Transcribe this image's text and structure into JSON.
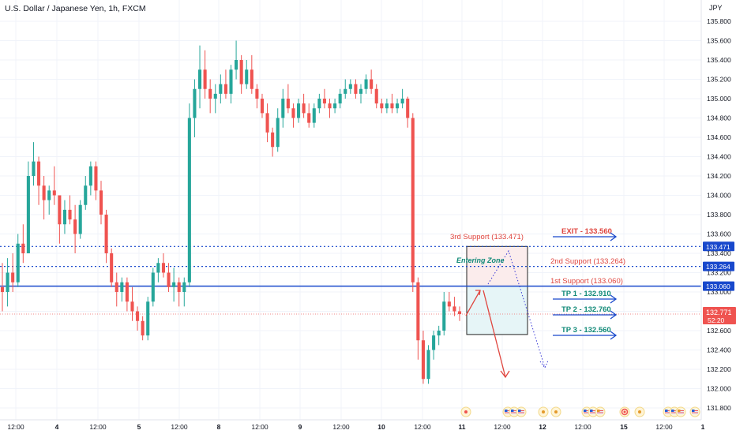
{
  "header": {
    "symbol_title": "U.S. Dollar / Japanese Yen, 1h, FXCM",
    "currency": "JPY"
  },
  "chart_data": {
    "type": "candlestick",
    "title": "U.S. Dollar / Japanese Yen, 1h, FXCM",
    "y_axis": {
      "unit": "JPY",
      "range": [
        131.75,
        135.9
      ],
      "ticks": [
        "131.800",
        "132.000",
        "132.200",
        "132.400",
        "132.600",
        "132.800",
        "133.000",
        "133.200",
        "133.400",
        "133.600",
        "133.800",
        "134.000",
        "134.200",
        "134.400",
        "134.600",
        "134.800",
        "135.000",
        "135.200",
        "135.400",
        "135.600",
        "135.800"
      ]
    },
    "x_axis": {
      "ticks": [
        "12:00",
        "4",
        "12:00",
        "5",
        "12:00",
        "8",
        "12:00",
        "9",
        "12:00",
        "10",
        "12:00",
        "11",
        "12:00",
        "12",
        "12:00",
        "15",
        "12:00",
        "1"
      ]
    },
    "price_lines": [
      {
        "name": "3rd Support",
        "value": 133.471,
        "label": "133.471",
        "style": "dotted"
      },
      {
        "name": "2nd Support",
        "value": 133.264,
        "label": "133.264",
        "style": "dotted"
      },
      {
        "name": "1st Support",
        "value": 133.06,
        "label": "133.060",
        "style": "solid"
      },
      {
        "name": "Last price",
        "value": 132.771,
        "label": "132.771",
        "countdown": "52:20",
        "style": "dotted"
      }
    ],
    "annotations": {
      "third_support": "3rd Support (133.471)",
      "second_support": "2nd Support (133.264)",
      "first_support": "1st Support (133.060)",
      "entering_zone": "Entering Zone",
      "exit": "EXIT - 133.560",
      "tp1": "TP 1 - 132.910",
      "tp2": "TP 2 - 132.760",
      "tp3": "TP 3 - 132.560"
    },
    "zone": {
      "top": 133.471,
      "bottom": 132.56,
      "split": 133.06
    },
    "ohlc": [
      [
        133.05,
        133.3,
        132.8,
        133.0
      ],
      [
        133.0,
        133.35,
        132.85,
        133.2
      ],
      [
        133.2,
        133.4,
        133.0,
        133.1
      ],
      [
        133.1,
        133.6,
        133.05,
        133.5
      ],
      [
        133.5,
        133.7,
        133.3,
        133.4
      ],
      [
        133.4,
        134.35,
        133.4,
        134.2
      ],
      [
        134.2,
        134.55,
        134.1,
        134.35
      ],
      [
        134.35,
        134.4,
        133.9,
        134.1
      ],
      [
        134.1,
        134.2,
        133.75,
        133.95
      ],
      [
        133.95,
        134.1,
        133.8,
        134.05
      ],
      [
        134.05,
        134.3,
        133.9,
        134.0
      ],
      [
        134.0,
        134.0,
        133.5,
        133.7
      ],
      [
        133.7,
        133.95,
        133.6,
        133.85
      ],
      [
        133.85,
        134.0,
        133.7,
        133.75
      ],
      [
        133.75,
        133.9,
        133.4,
        133.6
      ],
      [
        133.6,
        133.95,
        133.55,
        133.9
      ],
      [
        133.9,
        134.2,
        133.85,
        134.1
      ],
      [
        134.1,
        134.35,
        134.0,
        134.3
      ],
      [
        134.3,
        134.35,
        133.95,
        134.05
      ],
      [
        134.05,
        134.15,
        133.7,
        133.8
      ],
      [
        133.8,
        133.85,
        133.3,
        133.4
      ],
      [
        133.4,
        133.45,
        133.05,
        133.1
      ],
      [
        133.1,
        133.2,
        132.85,
        133.0
      ],
      [
        133.0,
        133.15,
        132.9,
        133.1
      ],
      [
        133.1,
        133.15,
        132.8,
        132.9
      ],
      [
        132.9,
        133.05,
        132.7,
        132.8
      ],
      [
        132.8,
        132.85,
        132.6,
        132.7
      ],
      [
        132.7,
        132.75,
        132.5,
        132.55
      ],
      [
        132.55,
        132.95,
        132.5,
        132.9
      ],
      [
        132.9,
        133.25,
        132.85,
        133.2
      ],
      [
        133.2,
        133.35,
        133.1,
        133.3
      ],
      [
        133.3,
        133.4,
        133.15,
        133.2
      ],
      [
        133.2,
        133.3,
        133.0,
        133.05
      ],
      [
        133.05,
        133.25,
        132.9,
        133.1
      ],
      [
        133.1,
        133.15,
        132.85,
        133.0
      ],
      [
        133.0,
        133.15,
        132.85,
        133.1
      ],
      [
        133.1,
        134.95,
        133.05,
        134.8
      ],
      [
        134.8,
        135.2,
        134.6,
        135.1
      ],
      [
        135.1,
        135.55,
        134.9,
        135.3
      ],
      [
        135.3,
        135.5,
        135.0,
        135.1
      ],
      [
        135.1,
        135.2,
        134.85,
        135.0
      ],
      [
        135.0,
        135.15,
        134.85,
        135.05
      ],
      [
        135.05,
        135.25,
        134.95,
        135.15
      ],
      [
        135.15,
        135.3,
        135.0,
        135.05
      ],
      [
        135.05,
        135.35,
        134.95,
        135.3
      ],
      [
        135.3,
        135.6,
        135.2,
        135.4
      ],
      [
        135.4,
        135.45,
        135.05,
        135.15
      ],
      [
        135.15,
        135.4,
        135.1,
        135.3
      ],
      [
        135.3,
        135.45,
        135.05,
        135.1
      ],
      [
        135.1,
        135.15,
        134.9,
        135.0
      ],
      [
        135.0,
        135.05,
        134.8,
        134.85
      ],
      [
        134.85,
        134.95,
        134.55,
        134.65
      ],
      [
        134.65,
        134.7,
        134.4,
        134.5
      ],
      [
        134.5,
        134.9,
        134.45,
        134.8
      ],
      [
        134.8,
        135.1,
        134.7,
        135.0
      ],
      [
        135.0,
        135.15,
        134.85,
        134.9
      ],
      [
        134.9,
        134.95,
        134.7,
        134.8
      ],
      [
        134.8,
        135.0,
        134.75,
        134.95
      ],
      [
        134.95,
        135.05,
        134.8,
        134.85
      ],
      [
        134.85,
        134.95,
        134.7,
        134.75
      ],
      [
        134.75,
        134.95,
        134.7,
        134.9
      ],
      [
        134.9,
        135.05,
        134.85,
        135.0
      ],
      [
        135.0,
        135.1,
        134.9,
        134.95
      ],
      [
        134.95,
        135.0,
        134.8,
        134.9
      ],
      [
        134.9,
        135.0,
        134.85,
        134.95
      ],
      [
        134.95,
        135.1,
        134.9,
        135.05
      ],
      [
        135.05,
        135.2,
        135.0,
        135.1
      ],
      [
        135.1,
        135.2,
        135.05,
        135.15
      ],
      [
        135.15,
        135.2,
        135.0,
        135.05
      ],
      [
        135.05,
        135.15,
        134.95,
        135.1
      ],
      [
        135.1,
        135.25,
        135.05,
        135.2
      ],
      [
        135.2,
        135.3,
        135.05,
        135.1
      ],
      [
        135.1,
        135.15,
        134.9,
        134.95
      ],
      [
        134.95,
        135.0,
        134.85,
        134.9
      ],
      [
        134.9,
        135.0,
        134.85,
        134.95
      ],
      [
        134.95,
        135.05,
        134.85,
        134.9
      ],
      [
        134.9,
        135.0,
        134.85,
        134.95
      ],
      [
        134.95,
        135.1,
        134.9,
        135.0
      ],
      [
        135.0,
        135.02,
        134.7,
        134.8
      ],
      [
        134.8,
        134.85,
        133.0,
        133.1
      ],
      [
        133.1,
        133.15,
        132.3,
        132.5
      ],
      [
        132.5,
        132.6,
        132.05,
        132.1
      ],
      [
        132.1,
        132.45,
        132.05,
        132.4
      ],
      [
        132.4,
        132.6,
        132.3,
        132.55
      ],
      [
        132.55,
        132.65,
        132.45,
        132.6
      ],
      [
        132.6,
        133.0,
        132.55,
        132.9
      ],
      [
        132.9,
        133.0,
        132.8,
        132.85
      ],
      [
        132.85,
        132.95,
        132.75,
        132.8
      ],
      [
        132.8,
        132.85,
        132.7,
        132.771
      ]
    ]
  },
  "event_markers": [
    "us-flag-icon",
    "us-flag-icon",
    "us-flag-icon",
    "us-flag-icon",
    "us-flag-icon",
    "us-flag-icon",
    "us-flag-icon",
    "us-flag-icon"
  ],
  "colors": {
    "up": "#26a69a",
    "down": "#ef5350",
    "blue_line": "#1848cc",
    "grid": "#f0f3fa",
    "zone_red": "#fbecec",
    "zone_green": "#e6f5f7",
    "accent_green": "#128a78",
    "accent_red": "#e0463f"
  }
}
